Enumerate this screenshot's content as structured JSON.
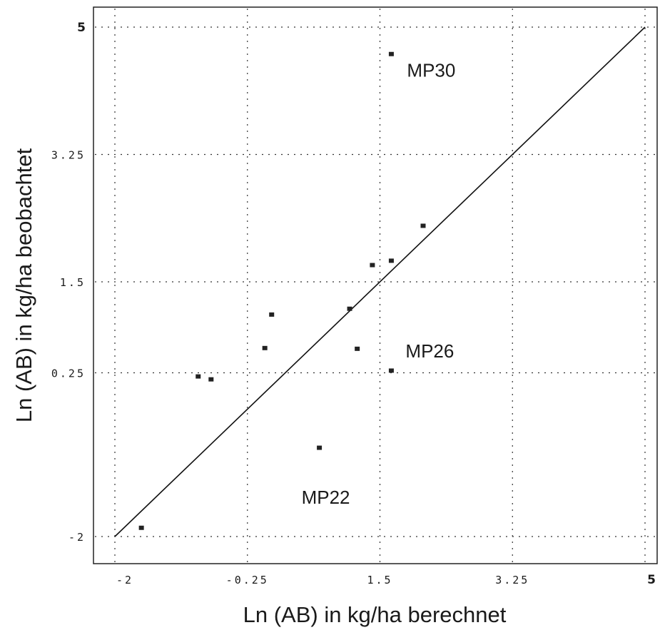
{
  "chart_data": {
    "type": "scatter",
    "title": "",
    "xlabel": "Ln (AB) in kg/ha berechnet",
    "ylabel": "Ln (AB) in kg/ha beobachtet",
    "xlim": [
      -2,
      5
    ],
    "ylim": [
      -2,
      5
    ],
    "grid": true,
    "x_ticks": [
      {
        "value": -2,
        "label": "-2"
      },
      {
        "value": -0.25,
        "label": "-0.25"
      },
      {
        "value": 1.5,
        "label": "1.5"
      },
      {
        "value": 3.25,
        "label": "3.25"
      },
      {
        "value": 5,
        "label": "5"
      }
    ],
    "y_ticks": [
      {
        "value": -2,
        "label": "-2"
      },
      {
        "value": 0.25,
        "label": "0.25"
      },
      {
        "value": 1.5,
        "label": "1.5"
      },
      {
        "value": 3.25,
        "label": "3.25"
      },
      {
        "value": 5,
        "label": "5"
      }
    ],
    "reference_line": {
      "x": [
        -2,
        5
      ],
      "y": [
        -2,
        5
      ]
    },
    "points": [
      {
        "x": -1.65,
        "y": -1.88
      },
      {
        "x": -0.9,
        "y": 0.2
      },
      {
        "x": -0.73,
        "y": 0.16
      },
      {
        "x": -0.02,
        "y": 0.59
      },
      {
        "x": 0.07,
        "y": 1.05
      },
      {
        "x": 0.7,
        "y": -0.78
      },
      {
        "x": 1.1,
        "y": 1.13
      },
      {
        "x": 1.2,
        "y": 0.58
      },
      {
        "x": 1.4,
        "y": 1.73
      },
      {
        "x": 1.65,
        "y": 1.79
      },
      {
        "x": 1.65,
        "y": 0.28
      },
      {
        "x": 1.65,
        "y": 4.63
      },
      {
        "x": 2.07,
        "y": 2.27
      }
    ],
    "annotations": [
      {
        "text": "MP30",
        "x": 1.65,
        "y": 4.63
      },
      {
        "text": "MP26",
        "x": 1.65,
        "y": 0.58
      },
      {
        "text": "MP22",
        "x": 0.7,
        "y": -1.45
      }
    ]
  }
}
